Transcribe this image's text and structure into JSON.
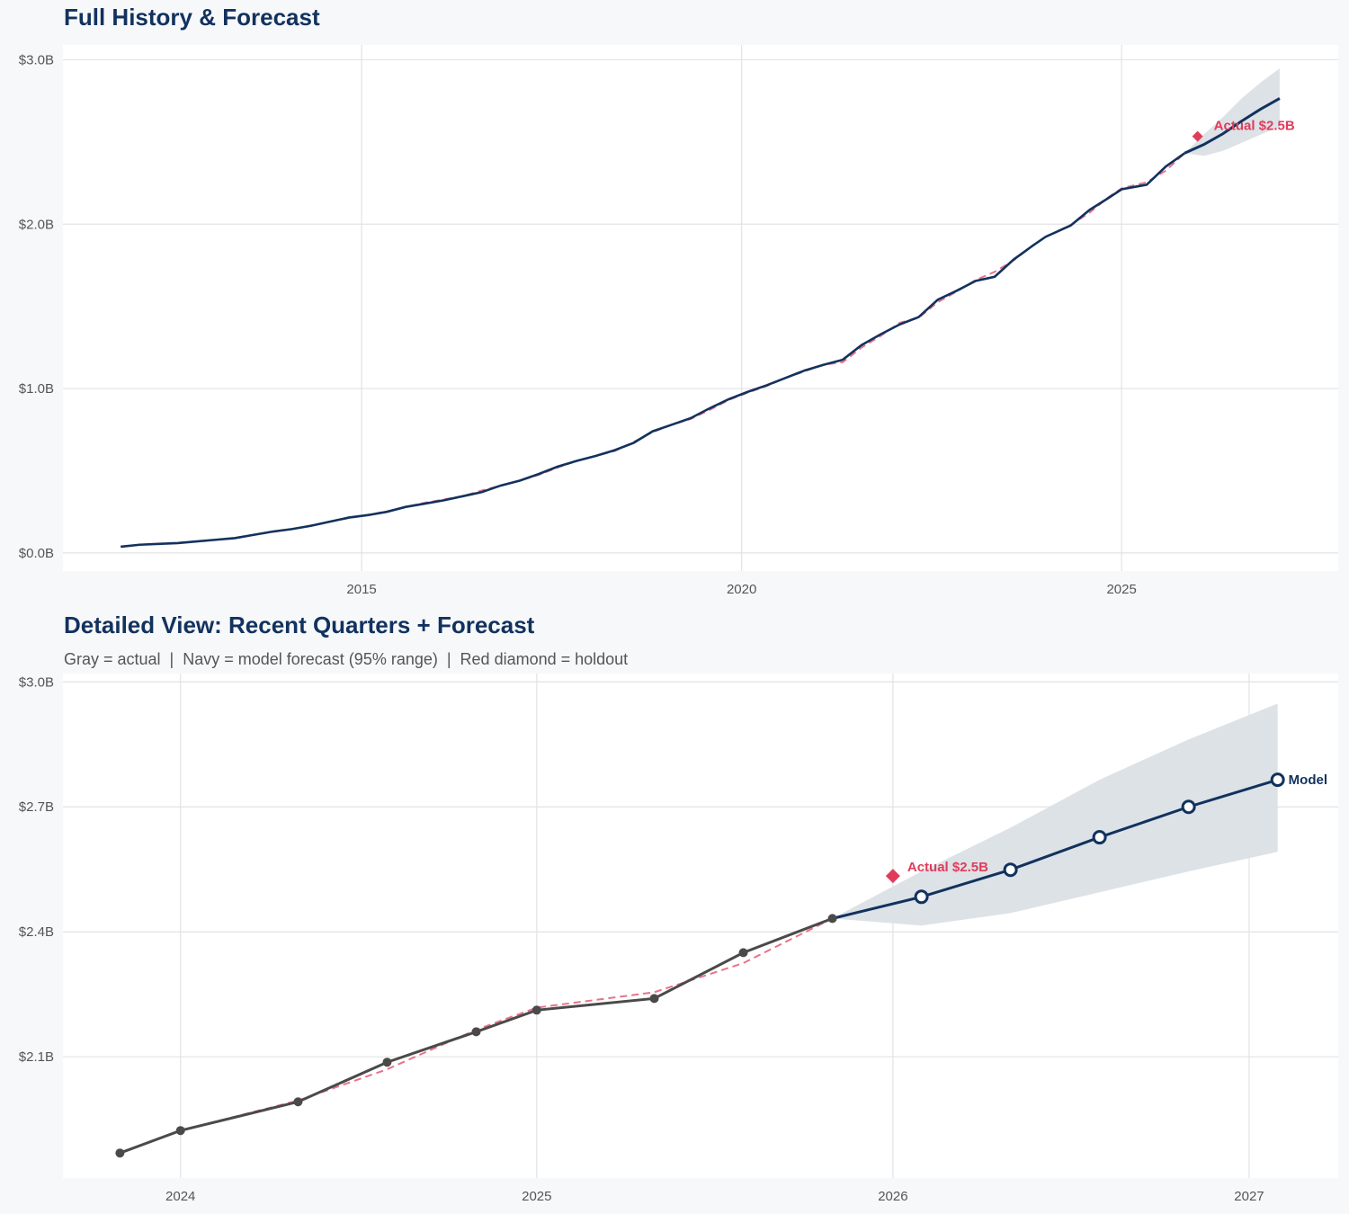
{
  "chart_data": [
    {
      "type": "line",
      "title": "Full History & Forecast",
      "xlim": [
        2011.07,
        2027.85
      ],
      "ylim": [
        -0.11,
        3.09
      ],
      "x_ticks": [
        2015,
        2020,
        2025
      ],
      "x_tick_labels": [
        "2015",
        "2020",
        "2025"
      ],
      "y_ticks": [
        0,
        1,
        2,
        3
      ],
      "y_tick_labels": [
        "$0.0B",
        "$1.0B",
        "$2.0B",
        "$3.0B"
      ],
      "grid": true,
      "history": {
        "x": [
          2011.83,
          2012.08,
          2012.33,
          2012.58,
          2012.83,
          2013.08,
          2013.33,
          2013.58,
          2013.83,
          2014.08,
          2014.33,
          2014.58,
          2014.83,
          2015.08,
          2015.33,
          2015.58,
          2015.83,
          2016.08,
          2016.33,
          2016.58,
          2016.83,
          2017.08,
          2017.33,
          2017.58,
          2017.83,
          2018.08,
          2018.33,
          2018.58,
          2018.83,
          2019.08,
          2019.33,
          2019.58,
          2019.83,
          2020.08,
          2020.33,
          2020.58,
          2020.83,
          2021.08,
          2021.33,
          2021.58,
          2021.83,
          2022.08,
          2022.33,
          2022.58,
          2022.83,
          2023.08,
          2023.33,
          2023.58,
          2023.83,
          2024.0,
          2024.33,
          2024.58,
          2024.83,
          2025.0,
          2025.33,
          2025.58,
          2025.83
        ],
        "values": [
          0.038,
          0.05,
          0.055,
          0.06,
          0.07,
          0.08,
          0.09,
          0.11,
          0.13,
          0.145,
          0.165,
          0.19,
          0.215,
          0.23,
          0.25,
          0.28,
          0.3,
          0.32,
          0.345,
          0.37,
          0.41,
          0.44,
          0.48,
          0.525,
          0.56,
          0.59,
          0.625,
          0.67,
          0.74,
          0.78,
          0.82,
          0.88,
          0.935,
          0.98,
          1.02,
          1.065,
          1.11,
          1.145,
          1.175,
          1.265,
          1.33,
          1.39,
          1.435,
          1.54,
          1.595,
          1.655,
          1.68,
          1.785,
          1.869,
          1.923,
          1.992,
          2.087,
          2.16,
          2.212,
          2.24,
          2.35,
          2.432
        ],
        "fitted": [
          0.038,
          0.05,
          0.056,
          0.062,
          0.07,
          0.08,
          0.092,
          0.11,
          0.128,
          0.145,
          0.167,
          0.19,
          0.212,
          0.232,
          0.252,
          0.28,
          0.305,
          0.325,
          0.345,
          0.38,
          0.41,
          0.44,
          0.475,
          0.52,
          0.56,
          0.59,
          0.62,
          0.675,
          0.735,
          0.78,
          0.815,
          0.87,
          0.93,
          0.975,
          1.015,
          1.065,
          1.105,
          1.145,
          1.16,
          1.25,
          1.32,
          1.4,
          1.43,
          1.525,
          1.59,
          1.66,
          1.71,
          1.78,
          1.869,
          1.923,
          1.995,
          2.07,
          2.165,
          2.218,
          2.255,
          2.325,
          2.432
        ]
      },
      "forecast": {
        "x": [
          2025.83,
          2026.08,
          2026.33,
          2026.58,
          2026.83,
          2027.08
        ],
        "values": [
          2.432,
          2.484,
          2.549,
          2.627,
          2.7,
          2.765
        ],
        "upper": [
          2.432,
          2.545,
          2.65,
          2.765,
          2.862,
          2.948
        ],
        "lower": [
          2.432,
          2.415,
          2.445,
          2.495,
          2.545,
          2.592
        ]
      },
      "holdout": {
        "x": 2026.0,
        "value": 2.534,
        "label": "Actual $2.5B"
      }
    },
    {
      "type": "line",
      "title": "Detailed View: Recent Quarters + Forecast",
      "subtitle": "Gray = actual  |  Navy = model forecast (95% range)  |  Red diamond = holdout",
      "xlim": [
        2023.67,
        2027.25
      ],
      "ylim": [
        1.809,
        3.02
      ],
      "x_ticks": [
        2024,
        2025,
        2026,
        2027
      ],
      "x_tick_labels": [
        "2024",
        "2025",
        "2026",
        "2027"
      ],
      "y_ticks": [
        2.1,
        2.4,
        2.7,
        3.0
      ],
      "y_tick_labels": [
        "$2.1B",
        "$2.4B",
        "$2.7B",
        "$3.0B"
      ],
      "grid": true,
      "history": {
        "x": [
          2023.83,
          2024.0,
          2024.33,
          2024.58,
          2024.83,
          2025.0,
          2025.33,
          2025.58,
          2025.83
        ],
        "values": [
          1.869,
          1.923,
          1.992,
          2.087,
          2.16,
          2.212,
          2.24,
          2.35,
          2.432
        ],
        "fitted": [
          1.869,
          1.923,
          1.995,
          2.07,
          2.165,
          2.218,
          2.255,
          2.325,
          2.432
        ]
      },
      "forecast": {
        "x": [
          2025.83,
          2026.08,
          2026.33,
          2026.58,
          2026.83,
          2027.08
        ],
        "values": [
          2.432,
          2.484,
          2.549,
          2.627,
          2.7,
          2.765
        ],
        "upper": [
          2.432,
          2.545,
          2.65,
          2.765,
          2.862,
          2.948
        ],
        "lower": [
          2.432,
          2.415,
          2.445,
          2.495,
          2.545,
          2.592
        ],
        "label": "Model"
      },
      "holdout": {
        "x": 2026.0,
        "value": 2.534,
        "label": "Actual $2.5B"
      }
    }
  ],
  "colors": {
    "actual_detail": "#4a4a4a",
    "model": "#12325e",
    "fitted": "#e8738a",
    "holdout": "#e03c5a",
    "band": "#dbe0e6",
    "grid": "#e3e3e3"
  }
}
